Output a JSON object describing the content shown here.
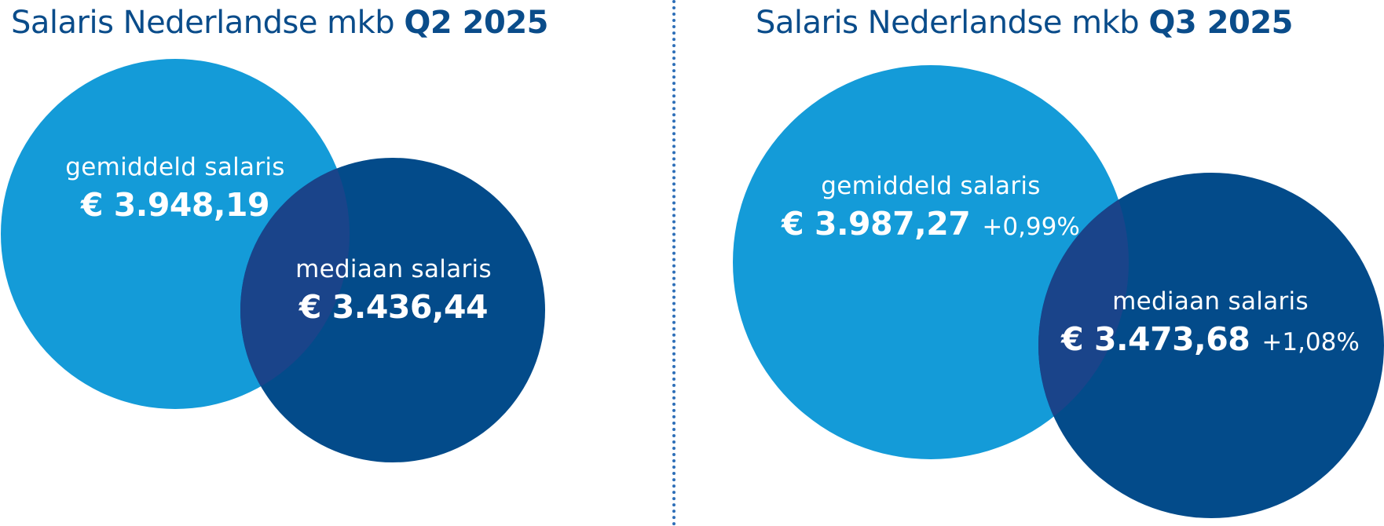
{
  "panels": [
    {
      "title_prefix": "Salaris Nederlandse mkb",
      "title_period": "Q2 2025",
      "average": {
        "label": "gemiddeld salaris",
        "value": "€ 3.948,19",
        "change": ""
      },
      "median": {
        "label": "mediaan salaris",
        "value": "€ 3.436,44",
        "change": ""
      }
    },
    {
      "title_prefix": "Salaris Nederlandse mkb",
      "title_period": "Q3 2025",
      "average": {
        "label": "gemiddeld salaris",
        "value": "€ 3.987,27",
        "change": "+0,99%"
      },
      "median": {
        "label": "mediaan salaris",
        "value": "€ 3.473,68",
        "change": "+1,08%"
      }
    }
  ],
  "colors": {
    "title": "#0a4c8a",
    "average_circle": "#149bd8",
    "median_circle": "#034b8a",
    "overlap": "#1a448a",
    "divider": "#2e6fb8"
  }
}
